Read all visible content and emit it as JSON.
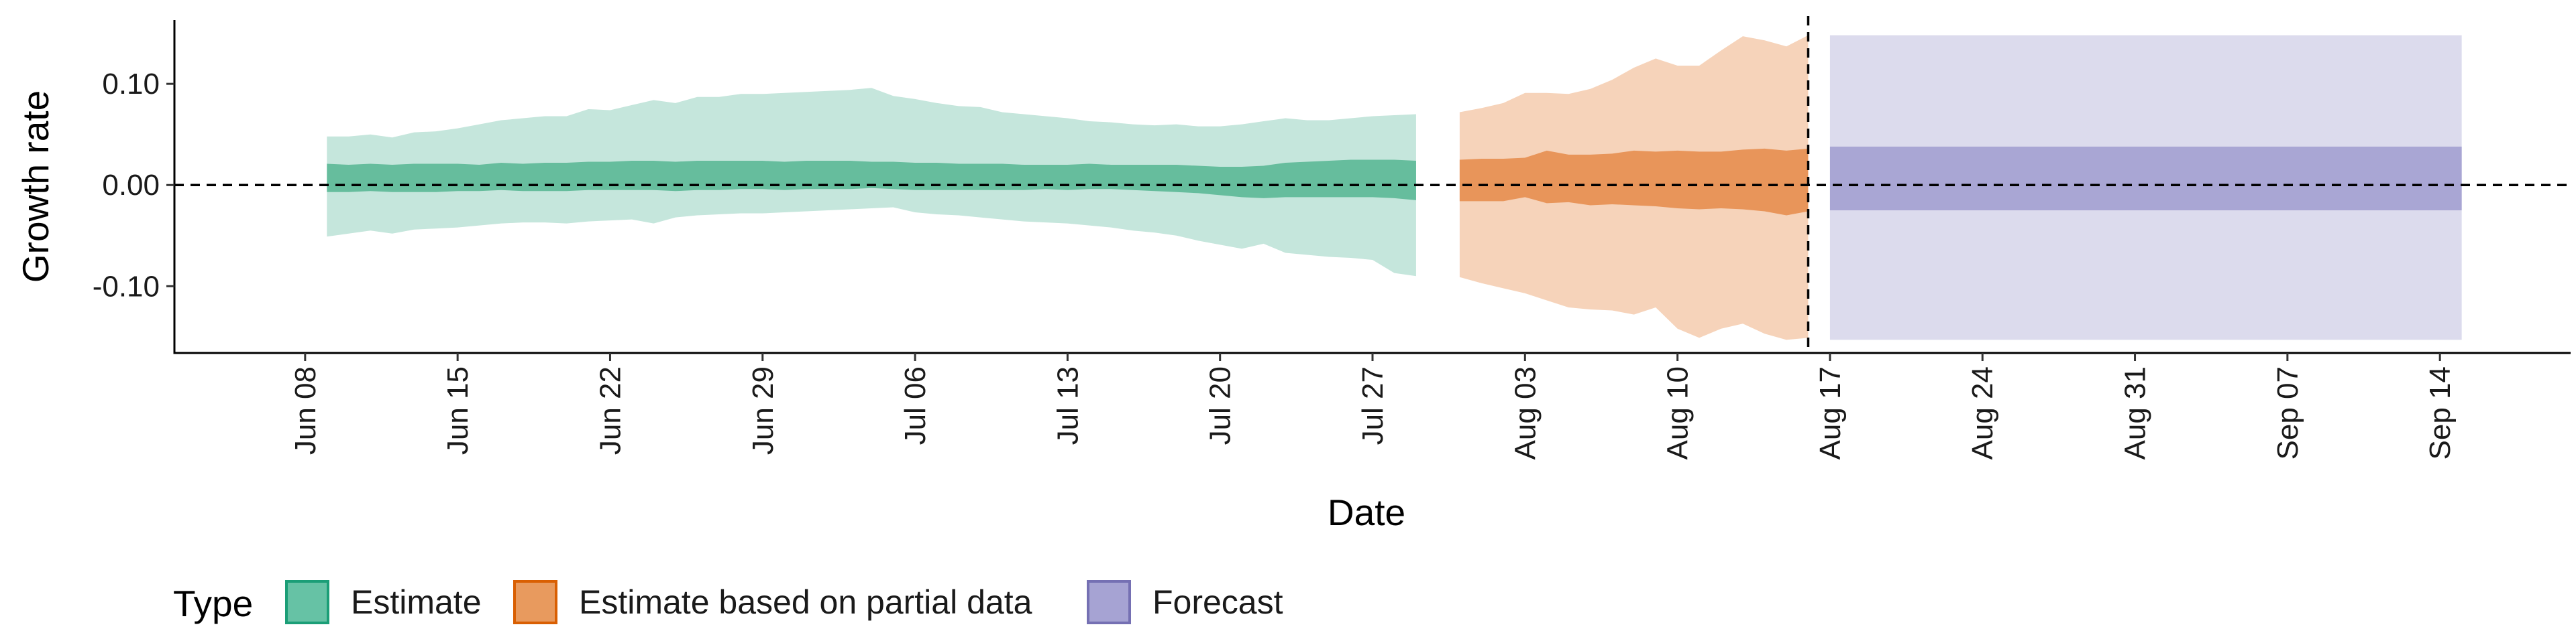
{
  "chart_data": {
    "type": "area",
    "xlabel": "Date",
    "ylabel": "Growth rate",
    "x_tick_labels": [
      "Jun 08",
      "Jun 15",
      "Jun 22",
      "Jun 29",
      "Jul 06",
      "Jul 13",
      "Jul 20",
      "Jul 27",
      "Aug 03",
      "Aug 10",
      "Aug 17",
      "Aug 24",
      "Aug 31",
      "Sep 07",
      "Sep 14"
    ],
    "x_tick_dates": [
      "2020-06-08",
      "2020-06-15",
      "2020-06-22",
      "2020-06-29",
      "2020-07-06",
      "2020-07-13",
      "2020-07-20",
      "2020-07-27",
      "2020-08-03",
      "2020-08-10",
      "2020-08-17",
      "2020-08-24",
      "2020-08-31",
      "2020-09-07",
      "2020-09-14"
    ],
    "y_ticks": [
      0.1,
      0.0,
      -0.1
    ],
    "y_tick_labels": [
      "0.10",
      "0.00",
      "-0.10"
    ],
    "xlim": [
      "2020-06-02",
      "2020-09-20"
    ],
    "ylim": [
      -0.166,
      0.163
    ],
    "reference_lines": [
      {
        "axis": "y",
        "value": 0.0,
        "style": "dashed"
      },
      {
        "axis": "x",
        "value": "2020-08-16",
        "style": "dashed"
      }
    ],
    "grid": false,
    "legend": {
      "title": "Type",
      "position": "bottom",
      "items": [
        {
          "label": "Estimate",
          "fill": "#66c2a5",
          "border": "#1b9e77"
        },
        {
          "label": "Estimate based on partial data",
          "fill": "#e89a5e",
          "border": "#d95f02"
        },
        {
          "label": "Forecast",
          "fill": "#a6a3d3",
          "border": "#7570b3"
        }
      ]
    },
    "series": [
      {
        "name": "Estimate",
        "outer_color": "#c5e6dc",
        "inner_color": "#66bd9d",
        "x": [
          "2020-06-09",
          "2020-06-10",
          "2020-06-11",
          "2020-06-12",
          "2020-06-13",
          "2020-06-14",
          "2020-06-15",
          "2020-06-16",
          "2020-06-17",
          "2020-06-18",
          "2020-06-19",
          "2020-06-20",
          "2020-06-21",
          "2020-06-22",
          "2020-06-23",
          "2020-06-24",
          "2020-06-25",
          "2020-06-26",
          "2020-06-27",
          "2020-06-28",
          "2020-06-29",
          "2020-06-30",
          "2020-07-01",
          "2020-07-02",
          "2020-07-03",
          "2020-07-04",
          "2020-07-05",
          "2020-07-06",
          "2020-07-07",
          "2020-07-08",
          "2020-07-09",
          "2020-07-10",
          "2020-07-11",
          "2020-07-12",
          "2020-07-13",
          "2020-07-14",
          "2020-07-15",
          "2020-07-16",
          "2020-07-17",
          "2020-07-18",
          "2020-07-19",
          "2020-07-20",
          "2020-07-21",
          "2020-07-22",
          "2020-07-23",
          "2020-07-24",
          "2020-07-25",
          "2020-07-26",
          "2020-07-27",
          "2020-07-28",
          "2020-07-29"
        ],
        "upper90": [
          0.048,
          0.048,
          0.05,
          0.047,
          0.052,
          0.053,
          0.056,
          0.06,
          0.064,
          0.066,
          0.068,
          0.068,
          0.075,
          0.074,
          0.079,
          0.084,
          0.081,
          0.087,
          0.087,
          0.09,
          0.09,
          0.091,
          0.092,
          0.093,
          0.094,
          0.096,
          0.088,
          0.085,
          0.081,
          0.078,
          0.077,
          0.072,
          0.07,
          0.068,
          0.066,
          0.063,
          0.062,
          0.06,
          0.059,
          0.06,
          0.058,
          0.058,
          0.06,
          0.063,
          0.066,
          0.064,
          0.064,
          0.066,
          0.068,
          0.069,
          0.07
        ],
        "upper50": [
          0.021,
          0.02,
          0.021,
          0.02,
          0.021,
          0.021,
          0.021,
          0.02,
          0.022,
          0.021,
          0.022,
          0.022,
          0.023,
          0.023,
          0.024,
          0.024,
          0.023,
          0.024,
          0.024,
          0.024,
          0.024,
          0.023,
          0.024,
          0.024,
          0.024,
          0.023,
          0.023,
          0.022,
          0.022,
          0.021,
          0.021,
          0.021,
          0.02,
          0.02,
          0.02,
          0.021,
          0.02,
          0.02,
          0.02,
          0.02,
          0.019,
          0.018,
          0.018,
          0.019,
          0.022,
          0.023,
          0.024,
          0.025,
          0.025,
          0.025,
          0.024
        ],
        "lower50": [
          -0.007,
          -0.007,
          -0.006,
          -0.007,
          -0.007,
          -0.007,
          -0.006,
          -0.006,
          -0.005,
          -0.006,
          -0.006,
          -0.006,
          -0.005,
          -0.005,
          -0.005,
          -0.005,
          -0.006,
          -0.005,
          -0.005,
          -0.004,
          -0.004,
          -0.005,
          -0.004,
          -0.004,
          -0.004,
          -0.003,
          -0.004,
          -0.005,
          -0.005,
          -0.005,
          -0.005,
          -0.005,
          -0.005,
          -0.004,
          -0.005,
          -0.004,
          -0.004,
          -0.005,
          -0.006,
          -0.007,
          -0.008,
          -0.01,
          -0.012,
          -0.013,
          -0.012,
          -0.012,
          -0.012,
          -0.012,
          -0.012,
          -0.013,
          -0.015
        ],
        "lower90": [
          -0.051,
          -0.048,
          -0.045,
          -0.048,
          -0.044,
          -0.043,
          -0.042,
          -0.04,
          -0.038,
          -0.037,
          -0.037,
          -0.038,
          -0.036,
          -0.035,
          -0.034,
          -0.038,
          -0.032,
          -0.03,
          -0.029,
          -0.028,
          -0.028,
          -0.027,
          -0.026,
          -0.025,
          -0.024,
          -0.023,
          -0.022,
          -0.027,
          -0.029,
          -0.03,
          -0.032,
          -0.034,
          -0.036,
          -0.037,
          -0.038,
          -0.04,
          -0.042,
          -0.045,
          -0.047,
          -0.05,
          -0.055,
          -0.059,
          -0.063,
          -0.058,
          -0.067,
          -0.069,
          -0.071,
          -0.072,
          -0.074,
          -0.087,
          -0.09
        ]
      },
      {
        "name": "Estimate based on partial data",
        "outer_color": "#f6d3ba",
        "inner_color": "#e8955a",
        "x": [
          "2020-07-31",
          "2020-08-01",
          "2020-08-02",
          "2020-08-03",
          "2020-08-04",
          "2020-08-05",
          "2020-08-06",
          "2020-08-07",
          "2020-08-08",
          "2020-08-09",
          "2020-08-10",
          "2020-08-11",
          "2020-08-12",
          "2020-08-13",
          "2020-08-14",
          "2020-08-15",
          "2020-08-16"
        ],
        "upper90": [
          0.072,
          0.076,
          0.081,
          0.091,
          0.091,
          0.09,
          0.095,
          0.104,
          0.116,
          0.125,
          0.118,
          0.118,
          0.133,
          0.147,
          0.143,
          0.137,
          0.148
        ],
        "upper50": [
          0.025,
          0.026,
          0.026,
          0.027,
          0.034,
          0.03,
          0.03,
          0.031,
          0.034,
          0.033,
          0.034,
          0.033,
          0.033,
          0.035,
          0.036,
          0.034,
          0.036
        ],
        "lower50": [
          -0.016,
          -0.016,
          -0.016,
          -0.012,
          -0.018,
          -0.017,
          -0.02,
          -0.019,
          -0.02,
          -0.021,
          -0.023,
          -0.024,
          -0.023,
          -0.024,
          -0.026,
          -0.03,
          -0.026
        ],
        "lower90": [
          -0.091,
          -0.097,
          -0.102,
          -0.107,
          -0.114,
          -0.121,
          -0.123,
          -0.124,
          -0.128,
          -0.121,
          -0.142,
          -0.151,
          -0.142,
          -0.137,
          -0.147,
          -0.153,
          -0.151
        ]
      },
      {
        "name": "Forecast",
        "outer_color": "#dcdbed",
        "inner_color": "#a9a6d4",
        "x": [
          "2020-08-17",
          "2020-09-15"
        ],
        "upper90": [
          0.148,
          0.148
        ],
        "upper50": [
          0.038,
          0.038
        ],
        "lower50": [
          -0.025,
          -0.025
        ],
        "lower90": [
          -0.153,
          -0.153
        ]
      }
    ]
  }
}
